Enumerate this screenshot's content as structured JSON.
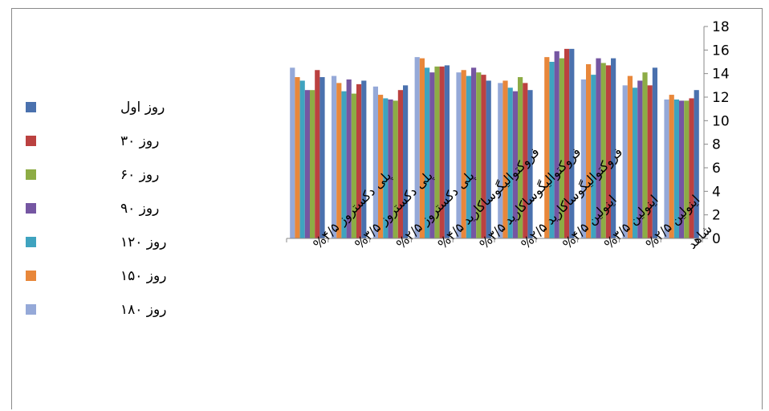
{
  "chart_data": {
    "type": "bar",
    "title": "",
    "xlabel": "",
    "ylabel": "",
    "ylim": [
      0,
      18
    ],
    "y_ticks": [
      0,
      2,
      4,
      6,
      8,
      10,
      12,
      14,
      16,
      18
    ],
    "y_axis_side": "right",
    "grid": false,
    "legend_position": "left",
    "categories": [
      "پلی دکستروز ۴/۵%",
      "پلی دکستروز ۳/۵%",
      "پلی دکستروز ۲/۵%",
      "فروکتوالیگوساکارید ۴/۵%",
      "فروکتوالیگوساکارید ۳/۵%",
      "فروکتوالیگوساکارید ۲/۵%",
      "اینولین ۴/۵%",
      "اینولین ۳/۵%",
      "اینولین ۲/۵%",
      "شاهد"
    ],
    "series": [
      {
        "name": "روز ۱۸۰",
        "color": "#95a9d8",
        "values": [
          14.5,
          13.8,
          12.9,
          15.4,
          14.1,
          13.2,
          0,
          13.5,
          13.0,
          11.8
        ]
      },
      {
        "name": "روز ۱۵۰",
        "color": "#e8873a",
        "values": [
          13.7,
          13.2,
          12.2,
          15.3,
          14.3,
          13.4,
          15.4,
          14.8,
          13.8,
          12.2
        ]
      },
      {
        "name": "روز ۱۲۰",
        "color": "#3fa3bf",
        "values": [
          13.4,
          12.5,
          11.9,
          14.5,
          13.8,
          12.8,
          15.0,
          13.9,
          12.8,
          11.8
        ]
      },
      {
        "name": "روز ۹۰",
        "color": "#7556a2",
        "values": [
          12.6,
          13.5,
          11.8,
          14.1,
          14.5,
          12.5,
          15.9,
          15.3,
          13.4,
          11.7
        ]
      },
      {
        "name": "روز ۶۰",
        "color": "#8dac45",
        "values": [
          12.6,
          12.3,
          11.7,
          14.6,
          14.1,
          13.7,
          15.3,
          14.9,
          14.1,
          11.7
        ]
      },
      {
        "name": "روز ۳۰",
        "color": "#bb4140",
        "values": [
          14.3,
          13.1,
          12.6,
          14.6,
          13.9,
          13.2,
          16.1,
          14.7,
          13.0,
          11.9
        ]
      },
      {
        "name": "روز اول",
        "color": "#4a71ae",
        "values": [
          13.7,
          13.4,
          13.0,
          14.7,
          13.4,
          12.6,
          16.1,
          15.3,
          14.5,
          12.6
        ]
      }
    ]
  }
}
